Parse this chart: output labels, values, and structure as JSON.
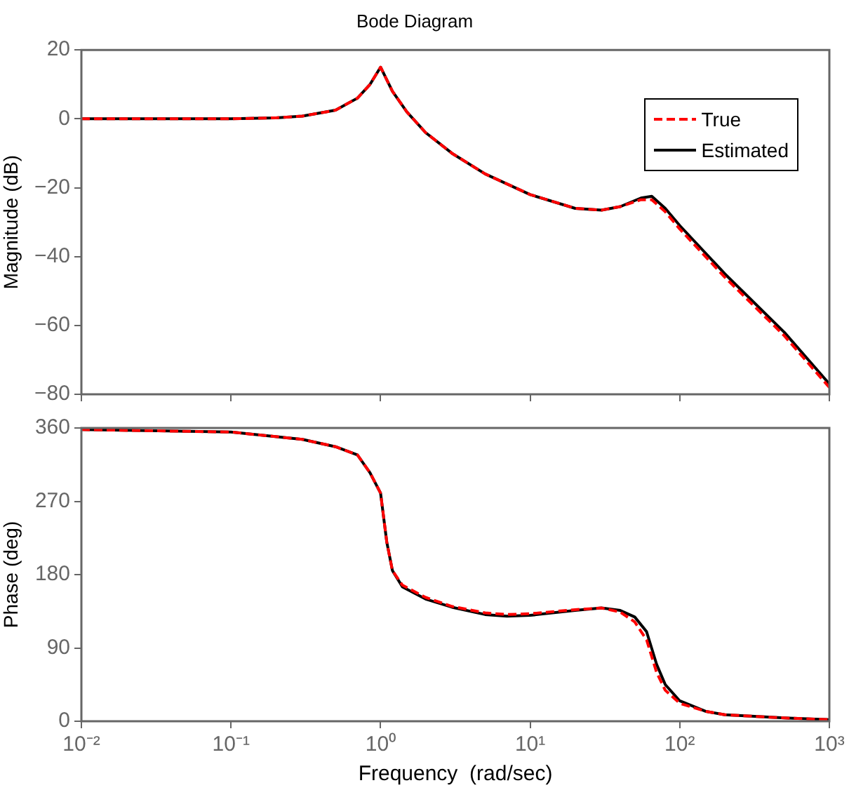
{
  "chart_data": [
    {
      "type": "line",
      "title": "Bode Diagram",
      "ylabel": "Magnitude (dB)",
      "log": "x",
      "grid": false,
      "legend": "top right",
      "tick_labels": "y",
      "marker": "none",
      "xlim": [
        0.01,
        1000
      ],
      "xticks": [
        {
          "value": 0.01,
          "label": null
        },
        {
          "value": 0.1,
          "label": null
        },
        {
          "value": 1,
          "label": null
        },
        {
          "value": 10,
          "label": null
        },
        {
          "value": 100,
          "label": null
        },
        {
          "value": 1000,
          "label": null
        }
      ],
      "ylim": [
        -80,
        20
      ],
      "yticks": [
        -80,
        -60,
        -40,
        -20,
        0,
        20
      ],
      "series": [
        {
          "name": "True",
          "color": "#ff0000",
          "line_style": "dashed",
          "x": [
            0.01,
            0.1,
            0.2,
            0.3,
            0.5,
            0.7,
            0.85,
            1,
            1.2,
            1.5,
            2,
            3,
            5,
            10,
            20,
            30,
            40,
            55,
            65,
            80,
            100,
            200,
            500,
            1000
          ],
          "values": [
            0,
            0,
            0.3,
            0.8,
            2.5,
            6,
            10,
            15,
            8,
            2,
            -4,
            -10,
            -16,
            -22,
            -26,
            -26.5,
            -25.5,
            -23.5,
            -23.5,
            -27,
            -32,
            -46,
            -63,
            -78
          ]
        },
        {
          "name": "Estimated",
          "color": "#000000",
          "line_style": "solid",
          "x": [
            0.01,
            0.1,
            0.2,
            0.3,
            0.5,
            0.7,
            0.85,
            1,
            1.2,
            1.5,
            2,
            3,
            5,
            10,
            20,
            30,
            40,
            55,
            65,
            80,
            100,
            200,
            500,
            1000
          ],
          "values": [
            0,
            0,
            0.3,
            0.8,
            2.5,
            6,
            10,
            15,
            8,
            2,
            -4,
            -10,
            -16,
            -22,
            -26,
            -26.5,
            -25.5,
            -23,
            -22.5,
            -26,
            -31,
            -45,
            -62,
            -77
          ]
        }
      ]
    },
    {
      "type": "line",
      "xlabel": "Frequency  (rad/sec)",
      "ylabel": "Phase (deg)",
      "log": "x",
      "grid": false,
      "marker": "none",
      "xlim": [
        0.01,
        1000
      ],
      "xticks": [
        {
          "value": 0.01,
          "label": "10⁻²"
        },
        {
          "value": 0.1,
          "label": "10⁻¹"
        },
        {
          "value": 1,
          "label": "10⁰"
        },
        {
          "value": 10,
          "label": "10¹"
        },
        {
          "value": 100,
          "label": "10²"
        },
        {
          "value": 1000,
          "label": "10³"
        }
      ],
      "ylim": [
        0,
        360
      ],
      "yticks": [
        0,
        90,
        180,
        270,
        360
      ],
      "series": [
        {
          "color": "#ff0000",
          "line_style": "dashed",
          "x": [
            0.01,
            0.1,
            0.3,
            0.5,
            0.7,
            0.85,
            1,
            1.1,
            1.2,
            1.4,
            2,
            3,
            5,
            7,
            10,
            20,
            30,
            40,
            50,
            60,
            70,
            80,
            100,
            150,
            200,
            500,
            1000
          ],
          "values": [
            358,
            355,
            346,
            337,
            327,
            305,
            280,
            220,
            185,
            167,
            152,
            141,
            133,
            131,
            132,
            137,
            139,
            134,
            122,
            100,
            60,
            38,
            22,
            12,
            8,
            4,
            2
          ]
        },
        {
          "color": "#000000",
          "line_style": "solid",
          "x": [
            0.01,
            0.1,
            0.3,
            0.5,
            0.7,
            0.85,
            1,
            1.1,
            1.2,
            1.4,
            2,
            3,
            5,
            7,
            10,
            20,
            30,
            40,
            50,
            60,
            70,
            80,
            100,
            150,
            200,
            500,
            1000
          ],
          "values": [
            358,
            355,
            346,
            337,
            327,
            305,
            280,
            220,
            185,
            165,
            150,
            140,
            131,
            129,
            130,
            136,
            139,
            136,
            128,
            110,
            70,
            45,
            25,
            12,
            8,
            4,
            2
          ]
        }
      ]
    }
  ]
}
